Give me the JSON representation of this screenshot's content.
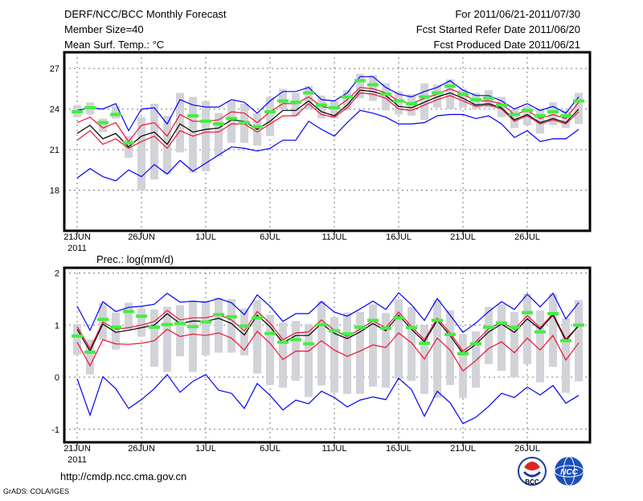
{
  "header": {
    "title": "DERF/NCC/BCC Monthly Forecast",
    "member_size": "Member Size=40",
    "variable": "Mean Surf. Temp.: °C",
    "period": "For 2011/06/21-2011/07/30",
    "started": "Fcst Started Refer Date 2011/06/20",
    "produced": "Fcst Produced Date 2011/06/21"
  },
  "footer": {
    "url": "http://cmdp.ncc.cma.gov.cn",
    "credit": "GrADS: COLA/IGES",
    "logo_bcc": "BCC",
    "logo_ncc": "NCC"
  },
  "colors": {
    "max_min": "#0000ff",
    "spread": "#ee1133",
    "mean": "#000000",
    "observed": "#44ee44",
    "range": "#d2d3d8"
  },
  "chart_data": [
    {
      "type": "line",
      "title": "Mean Surf. Temp.: °C",
      "xlabel": "",
      "ylabel": "",
      "x_tick_labels": [
        "21JUN",
        "26JUN",
        "1JUL",
        "6JUL",
        "11JUL",
        "16JUL",
        "21JUL",
        "26JUL"
      ],
      "x_tick_days": [
        0,
        5,
        10,
        15,
        20,
        25,
        30,
        35
      ],
      "year_label": "2011",
      "ylim": [
        15,
        28.2
      ],
      "y_ticks": [
        18,
        21,
        24,
        27
      ],
      "grid": true,
      "days": 40,
      "series": [
        {
          "name": "max",
          "color": "#0000ff",
          "values": [
            23.9,
            24.1,
            24.0,
            24.4,
            22.4,
            24.0,
            24.1,
            22.9,
            24.7,
            24.3,
            24.15,
            24.15,
            24.7,
            24.5,
            23.7,
            24.6,
            25.3,
            25.3,
            25.6,
            24.7,
            24.6,
            25.2,
            26.4,
            26.4,
            25.6,
            25.1,
            24.9,
            25.3,
            25.6,
            26.1,
            25.4,
            25.0,
            25.0,
            24.6,
            24.0,
            24.4,
            23.9,
            24.2,
            23.7,
            24.9
          ]
        },
        {
          "name": "upper",
          "color": "#ee1133",
          "values": [
            23.0,
            23.4,
            22.6,
            23.0,
            21.6,
            22.8,
            23.0,
            22.0,
            23.6,
            23.1,
            23.1,
            23.2,
            23.8,
            23.7,
            23.0,
            23.8,
            24.4,
            24.4,
            24.9,
            24.2,
            24.0,
            24.7,
            25.6,
            25.5,
            25.2,
            24.6,
            24.4,
            24.8,
            25.1,
            25.5,
            25.1,
            24.6,
            24.6,
            24.4,
            23.6,
            23.9,
            23.3,
            23.6,
            23.3,
            24.5
          ]
        },
        {
          "name": "mean",
          "color": "#000000",
          "values": [
            22.2,
            22.8,
            21.8,
            22.2,
            21.2,
            22.0,
            22.3,
            21.4,
            22.9,
            22.3,
            22.5,
            22.6,
            23.2,
            23.1,
            22.5,
            23.1,
            23.9,
            23.9,
            24.6,
            23.8,
            23.5,
            24.3,
            25.4,
            25.3,
            25.0,
            24.2,
            24.1,
            24.5,
            24.9,
            25.2,
            24.8,
            24.3,
            24.4,
            24.1,
            23.2,
            23.6,
            23.0,
            23.3,
            23.0,
            24.0
          ]
        },
        {
          "name": "lower",
          "color": "#ee1133",
          "values": [
            21.7,
            22.4,
            21.4,
            21.8,
            21.1,
            21.6,
            22.0,
            21.1,
            22.4,
            22.0,
            22.3,
            22.3,
            22.9,
            22.9,
            22.3,
            22.9,
            23.5,
            23.5,
            24.4,
            23.6,
            23.4,
            24.1,
            25.2,
            25.1,
            24.8,
            24.0,
            23.9,
            24.3,
            24.7,
            25.0,
            24.6,
            24.2,
            24.3,
            24.0,
            23.1,
            23.5,
            22.9,
            23.2,
            22.9,
            23.8
          ]
        },
        {
          "name": "min",
          "color": "#0000ff",
          "values": [
            18.9,
            19.6,
            19.0,
            18.7,
            19.5,
            19.0,
            19.9,
            19.2,
            20.2,
            19.4,
            20.0,
            20.6,
            21.2,
            21.1,
            20.9,
            21.1,
            21.7,
            21.7,
            23.1,
            22.5,
            22.0,
            23.0,
            23.9,
            23.7,
            23.4,
            22.9,
            22.9,
            23.0,
            23.5,
            23.6,
            23.6,
            23.3,
            23.5,
            22.9,
            21.9,
            22.4,
            21.6,
            21.8,
            21.8,
            22.5
          ]
        }
      ],
      "observed": [
        23.8,
        24.1,
        23.0,
        23.6,
        21.5,
        null,
        null,
        null,
        null,
        23.5,
        23.1,
        22.9,
        23.3,
        23.0,
        22.7,
        23.8,
        24.6,
        24.5,
        25.2,
        24.3,
        24.1,
        24.9,
        26.1,
        25.8,
        25.1,
        24.6,
        24.4,
        24.9,
        25.2,
        25.7,
        25.1,
        24.7,
        24.8,
        24.3,
        23.6,
        23.9,
        23.5,
        23.8,
        23.5,
        24.6
      ],
      "range_low": [
        23.4,
        23.6,
        22.3,
        23.3,
        20.4,
        18.0,
        18.8,
        19.2,
        20.8,
        19.3,
        19.4,
        20.5,
        21.5,
        21.5,
        21.3,
        22.0,
        24.0,
        23.5,
        24.0,
        23.3,
        23.3,
        23.9,
        24.8,
        24.6,
        23.9,
        23.6,
        23.5,
        23.2,
        24.1,
        24.0,
        24.1,
        24.0,
        24.1,
        23.4,
        22.6,
        22.8,
        22.2,
        22.8,
        22.6,
        22.9
      ],
      "range_high": [
        24.3,
        24.5,
        23.3,
        24.2,
        22.0,
        23.4,
        24.4,
        23.5,
        25.2,
        24.9,
        24.6,
        23.7,
        24.6,
        24.4,
        23.7,
        24.9,
        25.5,
        25.2,
        25.7,
        25.0,
        24.6,
        25.4,
        26.6,
        26.5,
        25.9,
        25.3,
        25.1,
        25.9,
        25.8,
        26.2,
        25.5,
        25.2,
        25.4,
        24.9,
        24.0,
        24.2,
        24.0,
        24.5,
        23.9,
        25.2
      ]
    },
    {
      "type": "line",
      "title": "Prec.: log(mm/d)",
      "xlabel": "",
      "ylabel": "",
      "x_tick_labels": [
        "21JUN",
        "26JUN",
        "1JUL",
        "6JUL",
        "11JUL",
        "16JUL",
        "21JUL",
        "26JUL"
      ],
      "x_tick_days": [
        0,
        5,
        10,
        15,
        20,
        25,
        30,
        35
      ],
      "year_label": "2011",
      "ylim": [
        -1.25,
        2.1
      ],
      "y_ticks": [
        -1,
        0,
        1,
        2
      ],
      "grid": true,
      "days": 40,
      "series": [
        {
          "name": "max",
          "color": "#0000ff",
          "values": [
            1.36,
            0.9,
            1.45,
            1.26,
            1.34,
            1.36,
            1.4,
            1.61,
            1.44,
            1.46,
            1.44,
            1.51,
            1.43,
            1.2,
            1.58,
            1.36,
            1.07,
            1.22,
            1.22,
            1.45,
            1.25,
            1.17,
            1.31,
            1.46,
            1.3,
            1.62,
            1.39,
            1.09,
            1.51,
            1.19,
            0.86,
            1.04,
            1.26,
            1.45,
            1.3,
            1.59,
            1.35,
            1.61,
            1.12,
            1.43
          ]
        },
        {
          "name": "upper",
          "color": "#ee1133",
          "values": [
            0.97,
            0.55,
            1.06,
            0.92,
            0.95,
            1.0,
            1.07,
            1.28,
            1.1,
            1.14,
            1.14,
            1.2,
            1.1,
            0.89,
            1.26,
            1.04,
            0.72,
            0.85,
            0.87,
            1.1,
            0.9,
            0.78,
            0.92,
            1.08,
            0.95,
            1.25,
            0.97,
            0.72,
            1.13,
            0.85,
            0.5,
            0.68,
            0.93,
            1.05,
            0.92,
            1.18,
            0.95,
            1.22,
            0.73,
            0.99
          ]
        },
        {
          "name": "mean",
          "color": "#000000",
          "values": [
            0.92,
            0.5,
            1.02,
            0.86,
            0.9,
            0.95,
            1.0,
            1.22,
            1.03,
            1.08,
            1.07,
            1.13,
            1.03,
            0.81,
            1.19,
            0.97,
            0.66,
            0.8,
            0.8,
            1.03,
            0.84,
            0.74,
            0.87,
            1.03,
            0.89,
            1.19,
            0.92,
            0.68,
            1.09,
            0.8,
            0.45,
            0.63,
            0.87,
            1.02,
            0.86,
            1.12,
            0.92,
            1.19,
            0.7,
            0.99
          ]
        },
        {
          "name": "lower",
          "color": "#ee1133",
          "values": [
            0.67,
            0.22,
            0.72,
            0.64,
            0.63,
            0.65,
            0.7,
            0.92,
            0.78,
            0.83,
            0.8,
            0.85,
            0.75,
            0.52,
            0.88,
            0.65,
            0.34,
            0.5,
            0.5,
            0.7,
            0.52,
            0.4,
            0.5,
            0.62,
            0.57,
            0.85,
            0.66,
            0.35,
            0.75,
            0.52,
            0.12,
            0.32,
            0.55,
            0.68,
            0.47,
            0.75,
            0.52,
            0.8,
            0.33,
            0.66
          ]
        },
        {
          "name": "min",
          "color": "#0000ff",
          "values": [
            -0.03,
            -0.73,
            0.01,
            -0.22,
            -0.6,
            -0.43,
            -0.22,
            0.05,
            -0.29,
            -0.08,
            0.05,
            -0.25,
            -0.31,
            -0.6,
            -0.12,
            -0.35,
            -0.63,
            -0.44,
            -0.51,
            -0.27,
            -0.39,
            -0.57,
            -0.44,
            -0.38,
            -0.43,
            -0.02,
            -0.24,
            -0.75,
            -0.27,
            -0.49,
            -0.89,
            -0.77,
            -0.56,
            -0.31,
            -0.39,
            -0.19,
            -0.34,
            -0.16,
            -0.5,
            -0.35
          ]
        }
      ],
      "observed": [
        0.79,
        0.48,
        1.11,
        0.96,
        1.26,
        1.17,
        0.96,
        1.01,
        1.03,
        0.97,
        1.06,
        1.2,
        1.16,
        0.98,
        1.14,
        0.84,
        0.67,
        0.72,
        0.64,
        1.01,
        0.89,
        0.83,
        0.96,
        1.09,
        0.94,
        1.14,
        0.95,
        0.65,
        1.09,
        0.82,
        0.45,
        0.64,
        0.96,
        1.04,
        0.96,
        1.24,
        0.87,
        1.22,
        0.7,
        1.0
      ],
      "range_low": [
        0.43,
        0.05,
        0.72,
        0.53,
        0.92,
        0.78,
        0.2,
        0.1,
        0.4,
        0.1,
        0.42,
        0.47,
        0.47,
        0.42,
        0.07,
        -0.15,
        -0.2,
        -0.07,
        -0.38,
        -0.16,
        -0.3,
        -0.32,
        -0.32,
        -0.18,
        -0.2,
        -0.03,
        -0.07,
        -0.32,
        -0.4,
        -0.15,
        -0.4,
        -0.2,
        0.25,
        0.12,
        0.0,
        0.25,
        -0.1,
        0.2,
        -0.3,
        -0.08
      ],
      "range_high": [
        1.02,
        0.72,
        1.42,
        1.24,
        1.43,
        1.32,
        1.3,
        1.35,
        1.38,
        1.45,
        1.47,
        1.53,
        1.5,
        1.32,
        1.48,
        1.2,
        1.05,
        1.08,
        1.02,
        1.46,
        1.15,
        1.24,
        1.25,
        1.4,
        1.23,
        1.5,
        1.35,
        1.0,
        1.48,
        1.28,
        0.83,
        0.88,
        1.35,
        1.4,
        1.25,
        1.6,
        1.28,
        1.6,
        1.13,
        1.48
      ]
    }
  ]
}
